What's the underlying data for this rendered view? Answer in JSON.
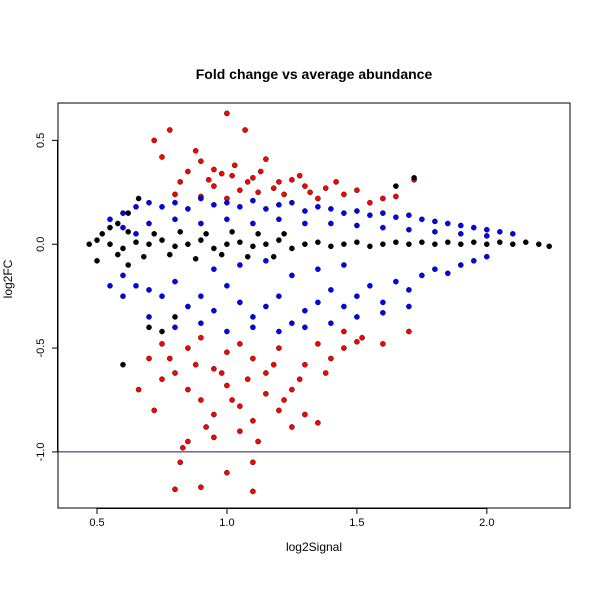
{
  "chart_data": {
    "type": "scatter",
    "title": "Fold change vs average abundance",
    "xlabel": "log2Signal",
    "ylabel": "log2FC",
    "xlim": [
      0.35,
      2.32
    ],
    "ylim": [
      -1.27,
      0.68
    ],
    "x_ticks": [
      0.5,
      1.0,
      1.5,
      2.0
    ],
    "x_tick_labels": [
      "0.5",
      "1.0",
      "1.5",
      "2.0"
    ],
    "y_ticks": [
      -1.0,
      -0.5,
      0.0,
      0.5
    ],
    "y_tick_labels": [
      "-1.0",
      "-0.5",
      "0.0",
      "0.5"
    ],
    "grid": false,
    "legend": "none",
    "reference_line": {
      "axis": "y",
      "value": -1.0,
      "color": "#191970"
    },
    "point_colors": {
      "black": "#000000",
      "blue": "#0000ff",
      "red": "#ff0000"
    },
    "series_note": "",
    "series": [
      {
        "color": "red",
        "points": [
          [
            0.72,
            0.5
          ],
          [
            0.78,
            0.55
          ],
          [
            0.88,
            0.45
          ],
          [
            1.0,
            0.63
          ],
          [
            1.07,
            0.55
          ],
          [
            0.75,
            0.42
          ],
          [
            0.9,
            0.4
          ],
          [
            1.15,
            0.41
          ],
          [
            0.85,
            0.35
          ],
          [
            0.95,
            0.36
          ],
          [
            1.02,
            0.33
          ],
          [
            1.1,
            0.32
          ],
          [
            1.2,
            0.3
          ],
          [
            1.25,
            0.31
          ],
          [
            1.3,
            0.28
          ],
          [
            1.38,
            0.27
          ],
          [
            1.42,
            0.3
          ],
          [
            1.5,
            0.26
          ],
          [
            1.6,
            0.22
          ],
          [
            1.72,
            0.31
          ],
          [
            0.95,
            0.28
          ],
          [
            1.05,
            0.26
          ],
          [
            1.12,
            0.25
          ],
          [
            1.18,
            0.27
          ],
          [
            0.8,
            0.24
          ],
          [
            0.9,
            0.23
          ],
          [
            1.0,
            0.22
          ],
          [
            1.08,
            0.3
          ],
          [
            1.22,
            0.24
          ],
          [
            1.35,
            0.22
          ],
          [
            1.45,
            0.24
          ],
          [
            1.55,
            0.2
          ],
          [
            0.98,
            0.34
          ],
          [
            1.03,
            0.38
          ],
          [
            1.13,
            0.35
          ],
          [
            0.82,
            0.3
          ],
          [
            1.28,
            0.33
          ],
          [
            1.32,
            0.25
          ],
          [
            1.65,
            0.23
          ],
          [
            0.93,
            0.31
          ],
          [
            0.75,
            -0.48
          ],
          [
            0.78,
            -0.55
          ],
          [
            0.85,
            -0.5
          ],
          [
            0.9,
            -0.45
          ],
          [
            0.95,
            -0.6
          ],
          [
            1.0,
            -0.52
          ],
          [
            1.05,
            -0.48
          ],
          [
            1.1,
            -0.55
          ],
          [
            1.15,
            -0.62
          ],
          [
            1.2,
            -0.5
          ],
          [
            1.25,
            -0.7
          ],
          [
            1.3,
            -0.58
          ],
          [
            1.35,
            -0.48
          ],
          [
            1.4,
            -0.55
          ],
          [
            1.45,
            -0.5
          ],
          [
            1.52,
            -0.45
          ],
          [
            1.6,
            -0.48
          ],
          [
            1.7,
            -0.42
          ],
          [
            0.8,
            -0.62
          ],
          [
            0.85,
            -0.7
          ],
          [
            0.9,
            -0.75
          ],
          [
            0.95,
            -0.82
          ],
          [
            1.0,
            -0.68
          ],
          [
            1.05,
            -0.78
          ],
          [
            1.1,
            -0.85
          ],
          [
            1.15,
            -0.72
          ],
          [
            1.2,
            -0.8
          ],
          [
            1.25,
            -0.88
          ],
          [
            1.3,
            -0.82
          ],
          [
            1.35,
            -0.86
          ],
          [
            0.85,
            -0.95
          ],
          [
            0.95,
            -0.93
          ],
          [
            1.05,
            -0.9
          ],
          [
            1.12,
            -0.95
          ],
          [
            0.82,
            -1.05
          ],
          [
            1.0,
            -1.1
          ],
          [
            1.1,
            -1.05
          ],
          [
            0.8,
            -1.18
          ],
          [
            0.9,
            -1.17
          ],
          [
            1.1,
            -1.19
          ],
          [
            0.72,
            -0.8
          ],
          [
            0.75,
            -0.65
          ],
          [
            0.88,
            -0.58
          ],
          [
            0.98,
            -0.62
          ],
          [
            1.08,
            -0.65
          ],
          [
            1.18,
            -0.58
          ],
          [
            1.28,
            -0.65
          ],
          [
            1.38,
            -0.62
          ],
          [
            0.83,
            -0.98
          ],
          [
            0.92,
            -0.88
          ],
          [
            1.02,
            -0.75
          ],
          [
            1.22,
            -0.75
          ],
          [
            0.66,
            -0.7
          ],
          [
            0.7,
            -0.55
          ],
          [
            1.45,
            -0.42
          ],
          [
            1.5,
            -0.47
          ]
        ]
      },
      {
        "color": "blue",
        "points": [
          [
            0.55,
            0.12
          ],
          [
            0.6,
            0.15
          ],
          [
            0.65,
            0.18
          ],
          [
            0.7,
            0.2
          ],
          [
            0.75,
            0.18
          ],
          [
            0.8,
            0.2
          ],
          [
            0.85,
            0.17
          ],
          [
            0.9,
            0.22
          ],
          [
            0.95,
            0.19
          ],
          [
            1.0,
            0.2
          ],
          [
            1.05,
            0.18
          ],
          [
            1.1,
            0.21
          ],
          [
            1.15,
            0.17
          ],
          [
            1.2,
            0.19
          ],
          [
            1.25,
            0.2
          ],
          [
            1.3,
            0.16
          ],
          [
            1.35,
            0.18
          ],
          [
            1.4,
            0.17
          ],
          [
            1.45,
            0.15
          ],
          [
            1.5,
            0.16
          ],
          [
            1.55,
            0.14
          ],
          [
            1.6,
            0.15
          ],
          [
            1.65,
            0.13
          ],
          [
            1.7,
            0.14
          ],
          [
            1.75,
            0.12
          ],
          [
            1.8,
            0.11
          ],
          [
            1.85,
            0.1
          ],
          [
            1.9,
            0.09
          ],
          [
            1.95,
            0.08
          ],
          [
            2.0,
            0.07
          ],
          [
            2.05,
            0.06
          ],
          [
            2.1,
            0.05
          ],
          [
            0.6,
            0.08
          ],
          [
            0.7,
            0.1
          ],
          [
            0.8,
            0.12
          ],
          [
            0.9,
            0.1
          ],
          [
            1.0,
            0.12
          ],
          [
            1.1,
            0.1
          ],
          [
            1.2,
            0.12
          ],
          [
            1.3,
            0.1
          ],
          [
            1.4,
            0.1
          ],
          [
            1.5,
            0.09
          ],
          [
            1.6,
            0.08
          ],
          [
            1.7,
            0.07
          ],
          [
            1.8,
            0.06
          ],
          [
            1.9,
            0.05
          ],
          [
            2.0,
            0.04
          ],
          [
            0.65,
            0.05
          ],
          [
            0.6,
            -0.15
          ],
          [
            0.65,
            -0.2
          ],
          [
            0.7,
            -0.22
          ],
          [
            0.75,
            -0.25
          ],
          [
            0.8,
            -0.18
          ],
          [
            0.85,
            -0.3
          ],
          [
            0.9,
            -0.25
          ],
          [
            0.95,
            -0.32
          ],
          [
            1.0,
            -0.2
          ],
          [
            1.05,
            -0.28
          ],
          [
            1.1,
            -0.35
          ],
          [
            1.15,
            -0.3
          ],
          [
            1.2,
            -0.25
          ],
          [
            1.25,
            -0.38
          ],
          [
            1.3,
            -0.32
          ],
          [
            1.35,
            -0.28
          ],
          [
            1.4,
            -0.22
          ],
          [
            1.45,
            -0.3
          ],
          [
            1.5,
            -0.25
          ],
          [
            1.55,
            -0.2
          ],
          [
            1.6,
            -0.28
          ],
          [
            1.65,
            -0.18
          ],
          [
            1.7,
            -0.22
          ],
          [
            1.75,
            -0.15
          ],
          [
            1.8,
            -0.12
          ],
          [
            1.85,
            -0.14
          ],
          [
            1.9,
            -0.1
          ],
          [
            1.95,
            -0.08
          ],
          [
            2.0,
            -0.06
          ],
          [
            0.7,
            -0.35
          ],
          [
            0.8,
            -0.4
          ],
          [
            0.9,
            -0.38
          ],
          [
            1.0,
            -0.42
          ],
          [
            1.1,
            -0.4
          ],
          [
            1.2,
            -0.42
          ],
          [
            1.3,
            -0.4
          ],
          [
            1.4,
            -0.38
          ],
          [
            1.5,
            -0.35
          ],
          [
            1.6,
            -0.33
          ],
          [
            1.7,
            -0.3
          ],
          [
            0.55,
            -0.2
          ],
          [
            0.6,
            -0.25
          ],
          [
            1.25,
            -0.15
          ],
          [
            1.35,
            -0.12
          ],
          [
            1.45,
            -0.1
          ],
          [
            0.95,
            -0.12
          ],
          [
            1.05,
            -0.1
          ],
          [
            1.15,
            -0.08
          ]
        ]
      },
      {
        "color": "black",
        "points": [
          [
            0.47,
            0.0
          ],
          [
            0.5,
            0.02
          ],
          [
            0.55,
            0.0
          ],
          [
            0.6,
            -0.02
          ],
          [
            0.65,
            0.01
          ],
          [
            0.7,
            0.0
          ],
          [
            0.75,
            0.02
          ],
          [
            0.8,
            -0.01
          ],
          [
            0.85,
            0.0
          ],
          [
            0.9,
            0.02
          ],
          [
            0.95,
            -0.02
          ],
          [
            1.0,
            0.0
          ],
          [
            1.05,
            0.01
          ],
          [
            1.1,
            -0.01
          ],
          [
            1.15,
            0.0
          ],
          [
            1.2,
            0.02
          ],
          [
            1.25,
            -0.02
          ],
          [
            1.3,
            0.0
          ],
          [
            1.35,
            0.01
          ],
          [
            1.4,
            -0.01
          ],
          [
            1.45,
            0.0
          ],
          [
            1.5,
            0.01
          ],
          [
            1.55,
            -0.01
          ],
          [
            1.6,
            0.0
          ],
          [
            1.65,
            0.01
          ],
          [
            1.7,
            0.0
          ],
          [
            1.75,
            0.01
          ],
          [
            1.8,
            0.0
          ],
          [
            1.85,
            0.01
          ],
          [
            1.9,
            0.0
          ],
          [
            1.95,
            0.01
          ],
          [
            2.0,
            0.0
          ],
          [
            2.05,
            0.01
          ],
          [
            2.1,
            0.0
          ],
          [
            2.15,
            0.01
          ],
          [
            2.2,
            0.0
          ],
          [
            2.24,
            -0.01
          ],
          [
            0.52,
            0.05
          ],
          [
            0.58,
            -0.05
          ],
          [
            0.62,
            0.06
          ],
          [
            0.68,
            -0.06
          ],
          [
            0.72,
            0.05
          ],
          [
            0.78,
            -0.05
          ],
          [
            0.82,
            0.06
          ],
          [
            0.88,
            -0.07
          ],
          [
            0.92,
            0.05
          ],
          [
            0.98,
            -0.05
          ],
          [
            1.02,
            0.06
          ],
          [
            1.08,
            -0.06
          ],
          [
            1.12,
            0.05
          ],
          [
            1.18,
            -0.06
          ],
          [
            1.22,
            0.05
          ],
          [
            0.6,
            -0.58
          ],
          [
            0.55,
            0.08
          ],
          [
            0.58,
            0.1
          ],
          [
            0.62,
            -0.1
          ],
          [
            0.5,
            -0.08
          ],
          [
            1.72,
            0.32
          ],
          [
            1.65,
            0.28
          ],
          [
            0.7,
            -0.4
          ],
          [
            0.75,
            -0.42
          ],
          [
            0.8,
            -0.35
          ],
          [
            0.62,
            0.15
          ],
          [
            0.66,
            0.22
          ]
        ]
      }
    ]
  }
}
